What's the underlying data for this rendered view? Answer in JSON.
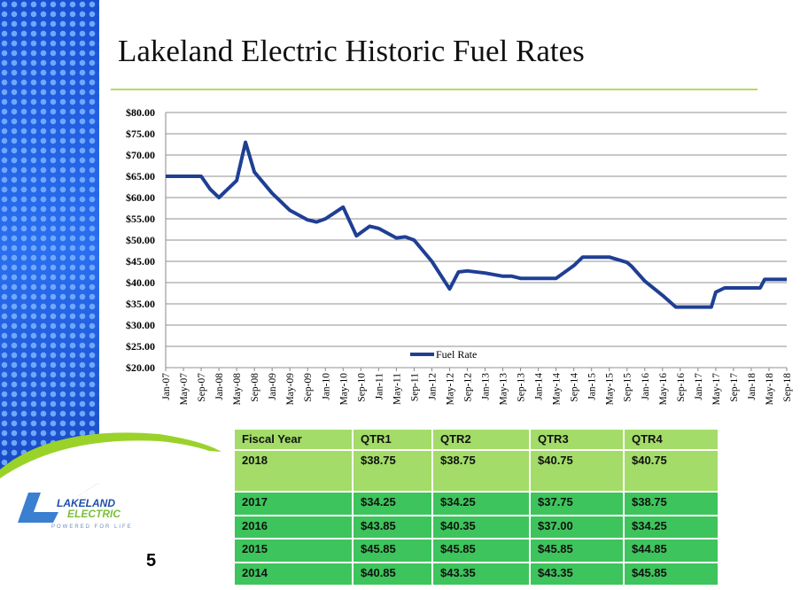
{
  "title": "Lakeland Electric Historic Fuel Rates",
  "page_number": "5",
  "logo": {
    "text1": "LAKELAND",
    "text2": "ELECTRIC",
    "tagline": "POWERED FOR LIFE"
  },
  "colors": {
    "line": "#1f3f94",
    "accent_green": "#9ad22a",
    "table_header": "#a3dc68",
    "table_body": "#3ec45c"
  },
  "chart_data": {
    "type": "line",
    "title": "",
    "xlabel": "",
    "ylabel": "",
    "ylim": [
      20,
      80
    ],
    "grid": true,
    "legend": "bottom-center",
    "y_ticks": [
      "$20.00",
      "$25.00",
      "$30.00",
      "$35.00",
      "$40.00",
      "$45.00",
      "$50.00",
      "$55.00",
      "$60.00",
      "$65.00",
      "$70.00",
      "$75.00",
      "$80.00"
    ],
    "x_ticks": [
      "Jan-07",
      "May-07",
      "Sep-07",
      "Jan-08",
      "May-08",
      "Sep-08",
      "Jan-09",
      "May-09",
      "Sep-09",
      "Jan-10",
      "May-10",
      "Sep-10",
      "Jan-11",
      "May-11",
      "Sep-11",
      "Jan-12",
      "May-12",
      "Sep-12",
      "Jan-13",
      "May-13",
      "Sep-13",
      "Jan-14",
      "May-14",
      "Sep-14",
      "Jan-15",
      "May-15",
      "Sep-15",
      "Jan-16",
      "May-16",
      "Sep-16",
      "Jan-17",
      "May-17",
      "Sep-17",
      "Jan-18",
      "May-18",
      "Sep-18"
    ],
    "series": [
      {
        "name": "Fuel Rate",
        "x": [
          "2007-01",
          "2007-05",
          "2007-09",
          "2007-11",
          "2008-01",
          "2008-05",
          "2008-07",
          "2008-09",
          "2009-01",
          "2009-05",
          "2009-09",
          "2009-11",
          "2010-01",
          "2010-05",
          "2010-08",
          "2010-11",
          "2011-01",
          "2011-05",
          "2011-07",
          "2011-09",
          "2012-01",
          "2012-05",
          "2012-07",
          "2012-09",
          "2013-01",
          "2013-05",
          "2013-07",
          "2013-09",
          "2014-01",
          "2014-05",
          "2014-09",
          "2014-11",
          "2015-01",
          "2015-05",
          "2015-09",
          "2015-10",
          "2016-01",
          "2016-05",
          "2016-08",
          "2017-01",
          "2017-04",
          "2017-05",
          "2017-07",
          "2017-09",
          "2018-01",
          "2018-03",
          "2018-04",
          "2018-09"
        ],
        "values": [
          65,
          65,
          65,
          62,
          60,
          64,
          73,
          66,
          61,
          57,
          54.75,
          54.25,
          55,
          57.75,
          51,
          53.25,
          52.75,
          50.5,
          50.75,
          50,
          45,
          38.5,
          42.5,
          42.75,
          42.25,
          41.5,
          41.5,
          41,
          41,
          41,
          44,
          46,
          46,
          46,
          44.75,
          43.85,
          40.35,
          37,
          34.25,
          34.25,
          34.25,
          37.75,
          38.75,
          38.75,
          38.75,
          38.75,
          40.75,
          40.75
        ]
      }
    ]
  },
  "table": {
    "headers": [
      "Fiscal Year",
      "QTR1",
      "QTR2",
      "QTR3",
      "QTR4"
    ],
    "rows": [
      [
        "2018",
        "$38.75",
        "$38.75",
        "$40.75",
        "$40.75"
      ],
      [
        "2017",
        "$34.25",
        "$34.25",
        "$37.75",
        "$38.75"
      ],
      [
        "2016",
        "$43.85",
        "$40.35",
        "$37.00",
        "$34.25"
      ],
      [
        "2015",
        "$45.85",
        "$45.85",
        "$45.85",
        "$44.85"
      ],
      [
        "2014",
        "$40.85",
        "$43.35",
        "$43.35",
        "$45.85"
      ]
    ]
  }
}
